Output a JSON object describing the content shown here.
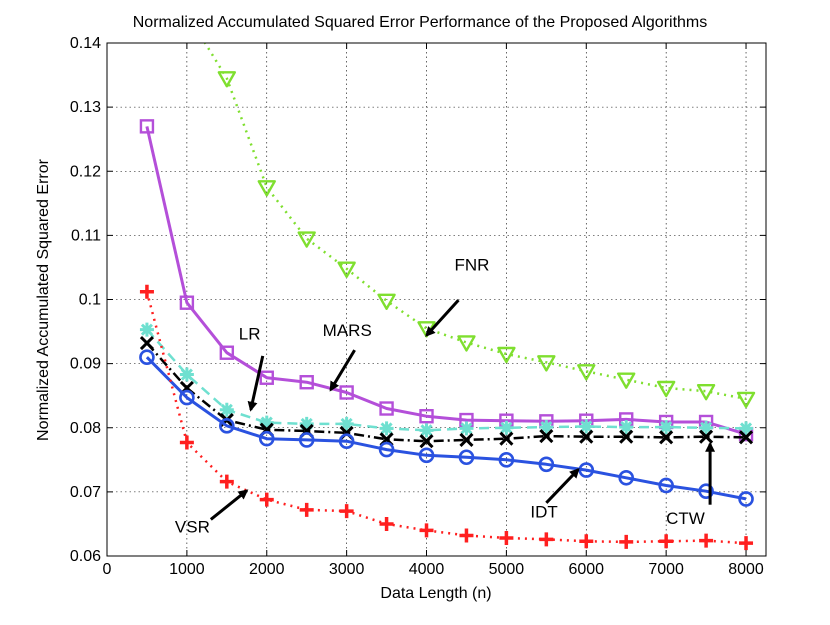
{
  "chart_data": {
    "type": "line",
    "title": "Normalized Accumulated Squared Error Performance of the Proposed Algorithms",
    "xlabel": "Data Length (n)",
    "ylabel": "Normalized Accumulated Squared Error",
    "xlim": [
      0,
      8250
    ],
    "ylim": [
      0.06,
      0.14
    ],
    "xticks": [
      0,
      1000,
      2000,
      3000,
      4000,
      5000,
      6000,
      7000,
      8000
    ],
    "yticks": [
      0.06,
      0.07,
      0.08,
      0.09,
      0.1,
      0.11,
      0.12,
      0.13,
      0.14
    ],
    "grid": true,
    "x": [
      500,
      1000,
      1500,
      2000,
      2500,
      3000,
      3500,
      4000,
      4500,
      5000,
      5500,
      6000,
      6500,
      7000,
      7500,
      8000
    ],
    "series": [
      {
        "name": "FNR",
        "color": "#7fdf2f",
        "style": "dotted",
        "marker": "triangle-down",
        "values": [
          null,
          null,
          0.1345,
          0.1175,
          0.1095,
          0.1048,
          0.0998,
          0.0955,
          0.0933,
          0.0915,
          0.0902,
          0.0888,
          0.0875,
          0.0862,
          0.0857,
          0.0845
        ]
      },
      {
        "name": "MARS",
        "color": "#b44fd9",
        "style": "solid",
        "marker": "square",
        "values": [
          0.127,
          0.0995,
          0.0917,
          0.0878,
          0.0871,
          0.0855,
          0.083,
          0.0818,
          0.0812,
          0.0811,
          0.081,
          0.0811,
          0.0813,
          0.0809,
          0.0809,
          0.079
        ]
      },
      {
        "name": "LR",
        "color": "#6fe0d0",
        "style": "dashed",
        "marker": "asterisk",
        "values": [
          0.0953,
          0.0883,
          0.0828,
          0.0808,
          0.0806,
          0.0806,
          0.0799,
          0.0796,
          0.0799,
          0.08,
          0.0801,
          0.0802,
          0.0801,
          0.0801,
          0.08,
          0.0799
        ]
      },
      {
        "name": "CTW",
        "color": "#000000",
        "style": "dashdot",
        "marker": "x",
        "values": [
          0.0932,
          0.0862,
          0.0812,
          0.0797,
          0.0795,
          0.0792,
          0.0782,
          0.0779,
          0.0781,
          0.0783,
          0.0787,
          0.0786,
          0.0786,
          0.0785,
          0.0786,
          0.0785
        ]
      },
      {
        "name": "IDT",
        "color": "#2a52e0",
        "style": "solid",
        "marker": "circle",
        "values": [
          0.091,
          0.0847,
          0.0803,
          0.0783,
          0.0781,
          0.0779,
          0.0766,
          0.0757,
          0.0754,
          0.075,
          0.0743,
          0.0734,
          0.0722,
          0.071,
          0.0701,
          0.0689
        ]
      },
      {
        "name": "VSR",
        "color": "#ff1f1f",
        "style": "dotted",
        "marker": "plus",
        "values": [
          0.1012,
          0.0777,
          0.0716,
          0.0688,
          0.0672,
          0.067,
          0.065,
          0.064,
          0.0632,
          0.0628,
          0.0626,
          0.0623,
          0.0622,
          0.0623,
          0.0624,
          0.062
        ]
      }
    ],
    "annotations": [
      {
        "text": "FNR",
        "label_at": [
          4350,
          0.1045
        ],
        "arrow_from": [
          4400,
          0.0999
        ],
        "arrow_to": [
          4000,
          0.0944
        ]
      },
      {
        "text": "MARS",
        "label_at": [
          2700,
          0.0943
        ],
        "arrow_from": [
          3100,
          0.0921
        ],
        "arrow_to": [
          2800,
          0.0859
        ]
      },
      {
        "text": "LR",
        "label_at": [
          1650,
          0.0938
        ],
        "arrow_from": [
          1950,
          0.0912
        ],
        "arrow_to": [
          1800,
          0.0828
        ]
      },
      {
        "text": "VSR",
        "label_at": [
          850,
          0.0637
        ],
        "arrow_from": [
          1300,
          0.0657
        ],
        "arrow_to": [
          1750,
          0.0702
        ]
      },
      {
        "text": "IDT",
        "label_at": [
          5300,
          0.066
        ],
        "arrow_from": [
          5500,
          0.0683
        ],
        "arrow_to": [
          5900,
          0.0735
        ]
      },
      {
        "text": "CTW",
        "label_at": [
          7000,
          0.065
        ],
        "arrow_from": [
          7550,
          0.068
        ],
        "arrow_to": [
          7550,
          0.0775
        ]
      }
    ]
  }
}
